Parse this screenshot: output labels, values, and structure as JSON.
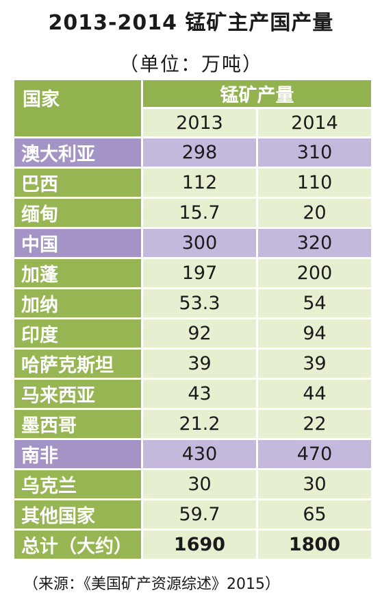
{
  "title": "2013-2014 锰矿主产国产量",
  "unit": "（单位：万吨）",
  "source": "（来源：《美国矿产资源综述》2015）",
  "colors": {
    "header_green": "#92b24f",
    "row_green_label": "#97b653",
    "row_green_cell": "#e6efcf",
    "highlight_label": "#a494c6",
    "highlight_cell": "#c4b9dc"
  },
  "chart_data": {
    "type": "table",
    "title": "2013-2014 锰矿主产国产量",
    "header_country": "国家",
    "header_production": "锰矿产量",
    "years": [
      "2013",
      "2014"
    ],
    "rows": [
      {
        "country": "澳大利亚",
        "v2013": "298",
        "v2014": "310",
        "highlight": true
      },
      {
        "country": "巴西",
        "v2013": "112",
        "v2014": "110",
        "highlight": false
      },
      {
        "country": "缅甸",
        "v2013": "15.7",
        "v2014": "20",
        "highlight": false
      },
      {
        "country": "中国",
        "v2013": "300",
        "v2014": "320",
        "highlight": true
      },
      {
        "country": "加蓬",
        "v2013": "197",
        "v2014": "200",
        "highlight": false
      },
      {
        "country": "加纳",
        "v2013": "53.3",
        "v2014": "54",
        "highlight": false
      },
      {
        "country": "印度",
        "v2013": "92",
        "v2014": "94",
        "highlight": false
      },
      {
        "country": "哈萨克斯坦",
        "v2013": "39",
        "v2014": "39",
        "highlight": false
      },
      {
        "country": "马来西亚",
        "v2013": "43",
        "v2014": "44",
        "highlight": false
      },
      {
        "country": "墨西哥",
        "v2013": "21.2",
        "v2014": "22",
        "highlight": false
      },
      {
        "country": "南非",
        "v2013": "430",
        "v2014": "470",
        "highlight": true
      },
      {
        "country": "乌克兰",
        "v2013": "30",
        "v2014": "30",
        "highlight": false
      },
      {
        "country": "其他国家",
        "v2013": "59.7",
        "v2014": "65",
        "highlight": false
      }
    ],
    "total": {
      "label": "总计（大约）",
      "v2013": "1690",
      "v2014": "1800"
    }
  }
}
